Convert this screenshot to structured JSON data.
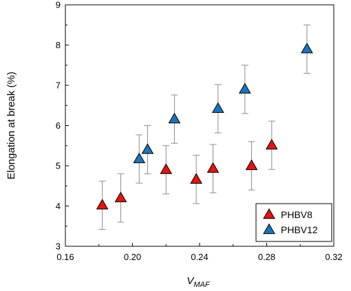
{
  "chart_data": {
    "type": "scatter",
    "title": "",
    "xlabel": "V",
    "xlabel_subscript": "MAF",
    "ylabel": "Elongation at break (%)",
    "xlim": [
      0.16,
      0.32
    ],
    "ylim": [
      3,
      9
    ],
    "x_ticks": [
      "0.16",
      "0.20",
      "0.24",
      "0.28",
      "0.32"
    ],
    "x_tick_values": [
      0.16,
      0.2,
      0.24,
      0.28,
      0.32
    ],
    "y_ticks": [
      "3",
      "4",
      "5",
      "6",
      "7",
      "8",
      "9"
    ],
    "y_tick_values": [
      3,
      4,
      5,
      6,
      7,
      8,
      9
    ],
    "grid": false,
    "legend_position": "bottom-right",
    "marker": "triangle",
    "series": [
      {
        "name": "PHBV8",
        "color": "#e3140f",
        "points": [
          {
            "x": 0.182,
            "y": 4.02,
            "err": 0.6
          },
          {
            "x": 0.193,
            "y": 4.2,
            "err": 0.6
          },
          {
            "x": 0.22,
            "y": 4.9,
            "err": 0.6
          },
          {
            "x": 0.238,
            "y": 4.66,
            "err": 0.6
          },
          {
            "x": 0.248,
            "y": 4.93,
            "err": 0.6
          },
          {
            "x": 0.271,
            "y": 5.0,
            "err": 0.6
          },
          {
            "x": 0.283,
            "y": 5.51,
            "err": 0.6
          }
        ]
      },
      {
        "name": "PHBV12",
        "color": "#1d74bb",
        "points": [
          {
            "x": 0.204,
            "y": 5.17,
            "err": 0.6
          },
          {
            "x": 0.209,
            "y": 5.4,
            "err": 0.6
          },
          {
            "x": 0.225,
            "y": 6.16,
            "err": 0.6
          },
          {
            "x": 0.251,
            "y": 6.42,
            "err": 0.6
          },
          {
            "x": 0.267,
            "y": 6.9,
            "err": 0.6
          },
          {
            "x": 0.304,
            "y": 7.9,
            "err": 0.6
          }
        ]
      }
    ]
  }
}
